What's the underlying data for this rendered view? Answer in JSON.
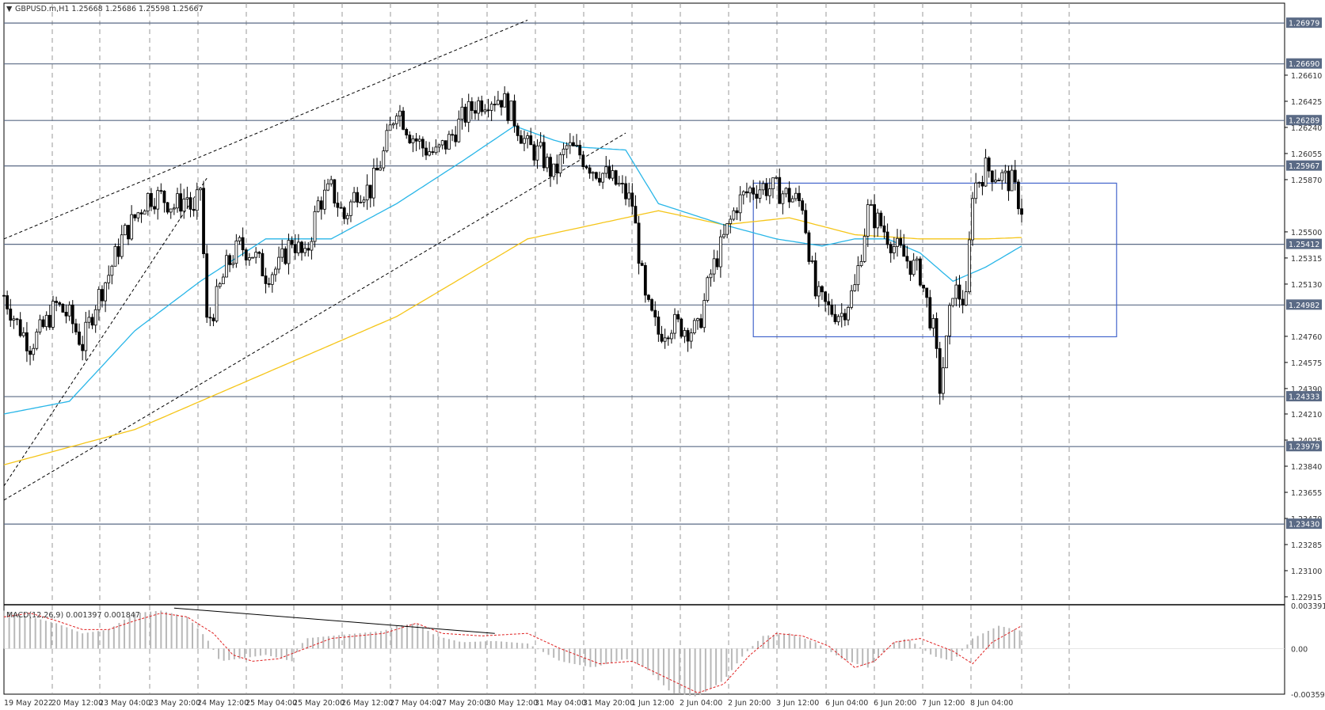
{
  "window": {
    "header_text": "GBPUSD.m,H1  1.25668 1.25686 1.25598 1.25667",
    "collapse_glyph": "▼"
  },
  "colors": {
    "background": "#ffffff",
    "grid": "#9a9a9a",
    "candle": "#000000",
    "ma_fast": "#29b6e8",
    "ma_slow": "#f5c518",
    "hline": "#5a6a85",
    "box": "#4466cc",
    "macd_hist": "#b8b8b8",
    "macd_signal": "#e02020",
    "price_label_bg": "#5a6a85",
    "divergence_line": "#000000"
  },
  "chart_data": {
    "type": "candlestick",
    "symbol": "GBPUSD.m",
    "timeframe": "H1",
    "ylim": [
      1.2287,
      1.2712
    ],
    "y_ticks": [
      "1.26610",
      "1.26425",
      "1.26240",
      "1.26055",
      "1.25870",
      "1.25500",
      "1.25315",
      "1.25130",
      "1.24760",
      "1.24575",
      "1.24390",
      "1.24210",
      "1.24025",
      "1.23840",
      "1.23655",
      "1.23470",
      "1.23285",
      "1.23100",
      "1.22915"
    ],
    "x_labels": [
      "19 May 2022",
      "20 May 12:00",
      "23 May 04:00",
      "23 May 20:00",
      "24 May 12:00",
      "25 May 04:00",
      "25 May 20:00",
      "26 May 12:00",
      "27 May 04:00",
      "27 May 20:00",
      "30 May 12:00",
      "31 May 04:00",
      "31 May 20:00",
      "1 Jun 12:00",
      "2 Jun 04:00",
      "2 Jun 20:00",
      "3 Jun 12:00",
      "6 Jun 04:00",
      "6 Jun 20:00",
      "7 Jun 12:00",
      "8 Jun 04:00"
    ],
    "horizontal_levels": [
      "1.26979",
      "1.26690",
      "1.26289",
      "1.25967",
      "1.25412",
      "1.24982",
      "1.24333",
      "1.23979",
      "1.23430"
    ],
    "current_price_label": "1.25967",
    "close_path": [
      [
        0,
        1.2505
      ],
      [
        4,
        1.2485
      ],
      [
        8,
        1.247
      ],
      [
        12,
        1.2482
      ],
      [
        16,
        1.2498
      ],
      [
        20,
        1.249
      ],
      [
        24,
        1.247
      ],
      [
        28,
        1.25
      ],
      [
        32,
        1.252
      ],
      [
        36,
        1.2545
      ],
      [
        40,
        1.256
      ],
      [
        44,
        1.2575
      ],
      [
        48,
        1.2575
      ],
      [
        52,
        1.2568
      ],
      [
        56,
        1.2575
      ],
      [
        58,
        1.256
      ],
      [
        60,
        1.2582
      ],
      [
        62,
        1.2485
      ],
      [
        64,
        1.2495
      ],
      [
        68,
        1.2525
      ],
      [
        72,
        1.254
      ],
      [
        76,
        1.2535
      ],
      [
        80,
        1.252
      ],
      [
        84,
        1.2525
      ],
      [
        88,
        1.2545
      ],
      [
        92,
        1.253
      ],
      [
        96,
        1.257
      ],
      [
        100,
        1.258
      ],
      [
        104,
        1.256
      ],
      [
        108,
        1.258
      ],
      [
        112,
        1.258
      ],
      [
        116,
        1.2605
      ],
      [
        120,
        1.264
      ],
      [
        124,
        1.262
      ],
      [
        128,
        1.261
      ],
      [
        132,
        1.2605
      ],
      [
        136,
        1.2615
      ],
      [
        140,
        1.263
      ],
      [
        144,
        1.264
      ],
      [
        148,
        1.2645
      ],
      [
        152,
        1.2645
      ],
      [
        156,
        1.263
      ],
      [
        160,
        1.261
      ],
      [
        164,
        1.2605
      ],
      [
        168,
        1.259
      ],
      [
        172,
        1.261
      ],
      [
        176,
        1.2605
      ],
      [
        180,
        1.2595
      ],
      [
        184,
        1.259
      ],
      [
        188,
        1.2582
      ],
      [
        192,
        1.257
      ],
      [
        196,
        1.25
      ],
      [
        200,
        1.2478
      ],
      [
        204,
        1.2485
      ],
      [
        208,
        1.2482
      ],
      [
        212,
        1.248
      ],
      [
        216,
        1.252
      ],
      [
        220,
        1.2545
      ],
      [
        224,
        1.257
      ],
      [
        228,
        1.258
      ],
      [
        232,
        1.2582
      ],
      [
        236,
        1.258
      ],
      [
        240,
        1.2575
      ],
      [
        244,
        1.257
      ],
      [
        248,
        1.2505
      ],
      [
        252,
        1.2495
      ],
      [
        256,
        1.2492
      ],
      [
        260,
        1.251
      ],
      [
        264,
        1.2565
      ],
      [
        268,
        1.2555
      ],
      [
        272,
        1.254
      ],
      [
        276,
        1.253
      ],
      [
        280,
        1.252
      ],
      [
        284,
        1.248
      ],
      [
        286,
        1.244
      ],
      [
        288,
        1.247
      ],
      [
        290,
        1.251
      ],
      [
        294,
        1.25
      ],
      [
        296,
        1.258
      ],
      [
        300,
        1.2595
      ],
      [
        304,
        1.259
      ],
      [
        308,
        1.2585
      ],
      [
        311,
        1.25667
      ]
    ],
    "ma_fast_path": [
      [
        0,
        1.2421
      ],
      [
        20,
        1.243
      ],
      [
        40,
        1.248
      ],
      [
        60,
        1.2515
      ],
      [
        80,
        1.2545
      ],
      [
        100,
        1.2545
      ],
      [
        120,
        1.257
      ],
      [
        140,
        1.26
      ],
      [
        156,
        1.2625
      ],
      [
        168,
        1.2615
      ],
      [
        176,
        1.261
      ],
      [
        190,
        1.2608
      ],
      [
        200,
        1.257
      ],
      [
        220,
        1.2555
      ],
      [
        236,
        1.2545
      ],
      [
        250,
        1.254
      ],
      [
        260,
        1.2545
      ],
      [
        270,
        1.2545
      ],
      [
        280,
        1.2535
      ],
      [
        290,
        1.2515
      ],
      [
        300,
        1.2525
      ],
      [
        311,
        1.254
      ]
    ],
    "ma_slow_path": [
      [
        0,
        1.2385
      ],
      [
        40,
        1.241
      ],
      [
        80,
        1.245
      ],
      [
        120,
        1.249
      ],
      [
        160,
        1.2545
      ],
      [
        200,
        1.2565
      ],
      [
        220,
        1.2555
      ],
      [
        240,
        1.256
      ],
      [
        260,
        1.2548
      ],
      [
        280,
        1.2545
      ],
      [
        300,
        1.2545
      ],
      [
        311,
        1.2546
      ]
    ],
    "channel_lines": [
      [
        [
          0,
          1.2545
        ],
        [
          160,
          1.27
        ]
      ],
      [
        [
          0,
          1.236
        ],
        [
          190,
          1.262
        ]
      ],
      [
        [
          0,
          1.237
        ],
        [
          62,
          1.2588
        ]
      ]
    ],
    "box": {
      "x_from": 229,
      "x_to": 340,
      "y_from": 1.25845,
      "y_to": 1.24757
    },
    "macd": {
      "label": "MACD(12,26,9) 0.001397 0.001847",
      "y_ticks": [
        "0.003391",
        "0.00",
        "-0.003595"
      ],
      "ylim": [
        -0.0036,
        0.0034
      ],
      "hist_path": [
        [
          0,
          0.003
        ],
        [
          8,
          0.0025
        ],
        [
          16,
          0.002
        ],
        [
          24,
          0.0012
        ],
        [
          32,
          0.0015
        ],
        [
          40,
          0.0028
        ],
        [
          48,
          0.003
        ],
        [
          56,
          0.0025
        ],
        [
          62,
          0.0008
        ],
        [
          66,
          -0.001
        ],
        [
          72,
          -0.0008
        ],
        [
          80,
          -0.0005
        ],
        [
          88,
          -0.001
        ],
        [
          92,
          0.0008
        ],
        [
          100,
          0.001
        ],
        [
          108,
          0.0012
        ],
        [
          116,
          0.0014
        ],
        [
          120,
          0.0018
        ],
        [
          126,
          0.002
        ],
        [
          132,
          0.001
        ],
        [
          140,
          0.0005
        ],
        [
          150,
          0.0006
        ],
        [
          160,
          0.0004
        ],
        [
          170,
          -0.001
        ],
        [
          180,
          -0.0015
        ],
        [
          190,
          -0.0008
        ],
        [
          196,
          -0.0015
        ],
        [
          204,
          -0.0035
        ],
        [
          212,
          -0.0038
        ],
        [
          220,
          -0.0025
        ],
        [
          226,
          -0.0005
        ],
        [
          232,
          0.001
        ],
        [
          240,
          0.0012
        ],
        [
          248,
          0.0005
        ],
        [
          256,
          -0.0008
        ],
        [
          264,
          -0.0015
        ],
        [
          272,
          0.0005
        ],
        [
          276,
          0.0008
        ],
        [
          284,
          -0.0006
        ],
        [
          290,
          -0.001
        ],
        [
          296,
          0.0008
        ],
        [
          304,
          0.0018
        ],
        [
          311,
          0.0014
        ]
      ],
      "signal_path": [
        [
          0,
          0.0025
        ],
        [
          8,
          0.0028
        ],
        [
          16,
          0.0022
        ],
        [
          24,
          0.0015
        ],
        [
          32,
          0.0015
        ],
        [
          40,
          0.0022
        ],
        [
          48,
          0.0028
        ],
        [
          56,
          0.0025
        ],
        [
          64,
          0.0012
        ],
        [
          70,
          -0.0005
        ],
        [
          76,
          -0.001
        ],
        [
          84,
          -0.0008
        ],
        [
          92,
          0.0
        ],
        [
          100,
          0.0008
        ],
        [
          108,
          0.001
        ],
        [
          116,
          0.0012
        ],
        [
          126,
          0.002
        ],
        [
          134,
          0.0012
        ],
        [
          146,
          0.001
        ],
        [
          160,
          0.0012
        ],
        [
          170,
          0.0
        ],
        [
          182,
          -0.0012
        ],
        [
          192,
          -0.001
        ],
        [
          204,
          -0.0025
        ],
        [
          212,
          -0.0035
        ],
        [
          220,
          -0.0028
        ],
        [
          228,
          -0.0005
        ],
        [
          236,
          0.0012
        ],
        [
          244,
          0.001
        ],
        [
          252,
          0.0002
        ],
        [
          260,
          -0.0015
        ],
        [
          266,
          -0.001
        ],
        [
          272,
          0.0005
        ],
        [
          280,
          0.0008
        ],
        [
          290,
          -0.0002
        ],
        [
          296,
          -0.0012
        ],
        [
          302,
          0.0005
        ],
        [
          311,
          0.0018
        ]
      ],
      "divergence_line": [
        [
          52,
          0.0032
        ],
        [
          150,
          0.0012
        ]
      ]
    }
  }
}
